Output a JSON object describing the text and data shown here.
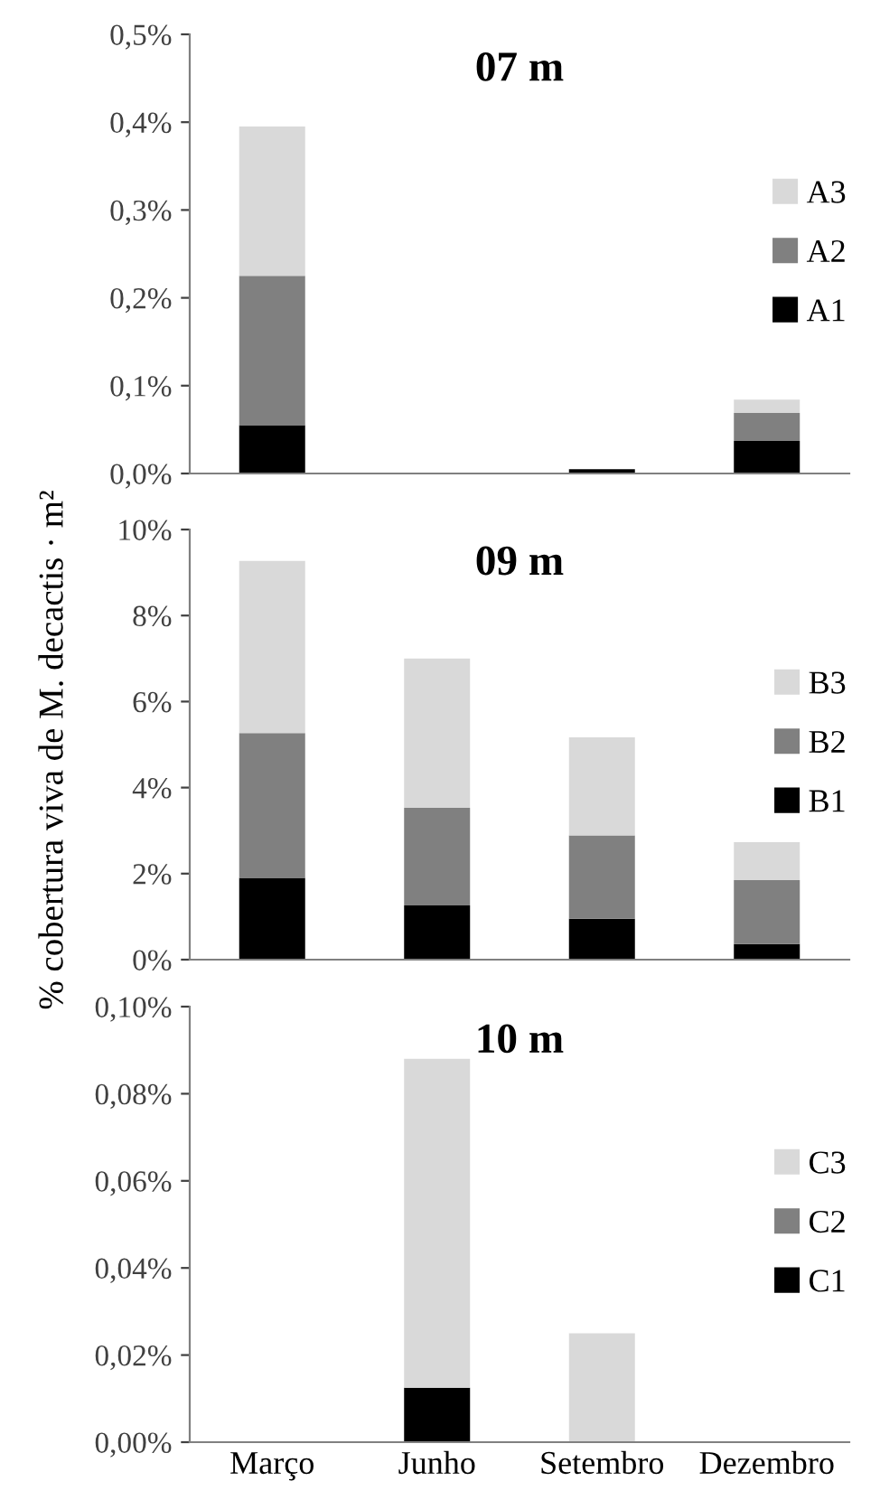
{
  "chart_data": [
    {
      "type": "bar",
      "stacked": true,
      "title": "07 m",
      "categories": [
        null,
        null,
        null,
        null
      ],
      "tick_labels": "y",
      "legend": "right",
      "ylim": [
        0,
        0.5
      ],
      "yticks": [
        {
          "value": 0,
          "label": "0,0%"
        },
        {
          "value": 0.1,
          "label": "0,1%"
        },
        {
          "value": 0.2,
          "label": "0,2%"
        },
        {
          "value": 0.3,
          "label": "0,3%"
        },
        {
          "value": 0.4,
          "label": "0,4%"
        },
        {
          "value": 0.5,
          "label": "0,5%"
        }
      ],
      "series": [
        {
          "name": "A1",
          "color": "#000000",
          "values": [
            0.055,
            0,
            0.005,
            0.037
          ]
        },
        {
          "name": "A2",
          "color": "#808080",
          "values": [
            0.17,
            0,
            0,
            0.032
          ]
        },
        {
          "name": "A3",
          "color": "#d9d9d9",
          "values": [
            0.17,
            0,
            0,
            0.015
          ]
        }
      ]
    },
    {
      "type": "bar",
      "stacked": true,
      "title": "09 m",
      "ylabel": "% cobertura viva de M. decactis · m²",
      "categories": [
        null,
        null,
        null,
        null
      ],
      "tick_labels": "y",
      "legend": "right",
      "ylim": [
        0,
        10
      ],
      "yticks": [
        {
          "value": 0,
          "label": "0%"
        },
        {
          "value": 2,
          "label": "2%"
        },
        {
          "value": 4,
          "label": "4%"
        },
        {
          "value": 6,
          "label": "6%"
        },
        {
          "value": 8,
          "label": "8%"
        },
        {
          "value": 10,
          "label": "10%"
        }
      ],
      "series": [
        {
          "name": "B1",
          "color": "#000000",
          "values": [
            1.9,
            1.26,
            0.95,
            0.36
          ]
        },
        {
          "name": "B2",
          "color": "#808080",
          "values": [
            3.37,
            2.27,
            1.94,
            1.49
          ]
        },
        {
          "name": "B3",
          "color": "#d9d9d9",
          "values": [
            4.0,
            3.47,
            2.28,
            0.88
          ]
        }
      ]
    },
    {
      "type": "bar",
      "stacked": true,
      "title": "10 m",
      "categories": [
        "Março",
        "Junho",
        "Setembro",
        "Dezembro"
      ],
      "legend": "right",
      "ylim": [
        0,
        0.1
      ],
      "yticks": [
        {
          "value": 0,
          "label": "0,00%"
        },
        {
          "value": 0.02,
          "label": "0,02%"
        },
        {
          "value": 0.04,
          "label": "0,04%"
        },
        {
          "value": 0.06,
          "label": "0,06%"
        },
        {
          "value": 0.08,
          "label": "0,08%"
        },
        {
          "value": 0.1,
          "label": "0,10%"
        }
      ],
      "series": [
        {
          "name": "C1",
          "color": "#000000",
          "values": [
            0,
            0.0125,
            0,
            0
          ]
        },
        {
          "name": "C2",
          "color": "#808080",
          "values": [
            0,
            0,
            0,
            0
          ]
        },
        {
          "name": "C3",
          "color": "#d9d9d9",
          "values": [
            0,
            0.0755,
            0.025,
            0
          ]
        }
      ]
    }
  ]
}
